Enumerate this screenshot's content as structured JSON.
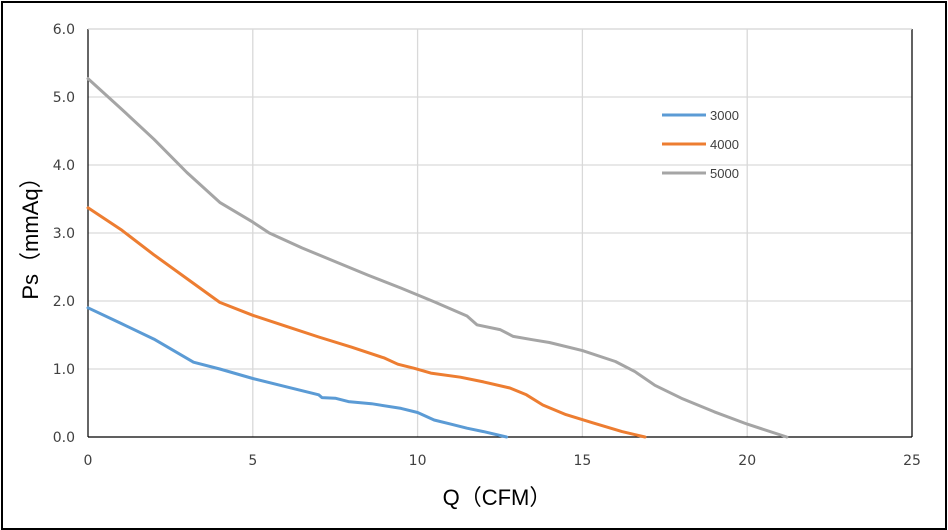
{
  "chart_data": {
    "type": "line",
    "title": "",
    "xlabel": "Q（CFM）",
    "ylabel": "Ps（mmAq）",
    "xlim": [
      0,
      25
    ],
    "ylim": [
      0,
      6
    ],
    "x_ticks": [
      "0",
      "5",
      "10",
      "15",
      "20",
      "25"
    ],
    "y_ticks": [
      "0.0",
      "1.0",
      "2.0",
      "3.0",
      "4.0",
      "5.0",
      "6.0"
    ],
    "grid": true,
    "legend_position": "top-right",
    "series": [
      {
        "name": "3000",
        "color": "#5B9BD5",
        "points": [
          [
            0,
            1.9
          ],
          [
            1,
            1.67
          ],
          [
            2,
            1.44
          ],
          [
            3.2,
            1.1
          ],
          [
            4,
            1.0
          ],
          [
            5,
            0.86
          ],
          [
            6,
            0.74
          ],
          [
            7,
            0.62
          ],
          [
            7.1,
            0.58
          ],
          [
            7.5,
            0.57
          ],
          [
            7.9,
            0.52
          ],
          [
            8.6,
            0.49
          ],
          [
            9.5,
            0.42
          ],
          [
            10.0,
            0.36
          ],
          [
            10.5,
            0.25
          ],
          [
            11.0,
            0.19
          ],
          [
            11.5,
            0.13
          ],
          [
            12.0,
            0.08
          ],
          [
            12.7,
            0.0
          ]
        ]
      },
      {
        "name": "4000",
        "color": "#ED7D31",
        "points": [
          [
            0,
            3.37
          ],
          [
            1,
            3.05
          ],
          [
            2,
            2.68
          ],
          [
            3,
            2.33
          ],
          [
            4,
            1.98
          ],
          [
            5,
            1.79
          ],
          [
            6,
            1.63
          ],
          [
            7,
            1.47
          ],
          [
            8,
            1.32
          ],
          [
            9,
            1.16
          ],
          [
            9.4,
            1.07
          ],
          [
            9.9,
            1.01
          ],
          [
            10.4,
            0.94
          ],
          [
            11.3,
            0.88
          ],
          [
            12.0,
            0.81
          ],
          [
            12.8,
            0.72
          ],
          [
            13.3,
            0.62
          ],
          [
            13.8,
            0.47
          ],
          [
            14.5,
            0.33
          ],
          [
            15.3,
            0.21
          ],
          [
            16.2,
            0.08
          ],
          [
            16.9,
            0.0
          ]
        ]
      },
      {
        "name": "5000",
        "color": "#A5A5A5",
        "points": [
          [
            0,
            5.27
          ],
          [
            1,
            4.83
          ],
          [
            2,
            4.38
          ],
          [
            3,
            3.89
          ],
          [
            4,
            3.45
          ],
          [
            5,
            3.16
          ],
          [
            5.5,
            3.0
          ],
          [
            6.5,
            2.78
          ],
          [
            7.5,
            2.58
          ],
          [
            8.5,
            2.38
          ],
          [
            9.5,
            2.19
          ],
          [
            10.5,
            1.99
          ],
          [
            11.5,
            1.78
          ],
          [
            11.8,
            1.65
          ],
          [
            12.5,
            1.58
          ],
          [
            12.9,
            1.48
          ],
          [
            13.5,
            1.43
          ],
          [
            14.0,
            1.39
          ],
          [
            15.0,
            1.27
          ],
          [
            16.0,
            1.11
          ],
          [
            16.6,
            0.96
          ],
          [
            17.2,
            0.76
          ],
          [
            18.0,
            0.57
          ],
          [
            19.0,
            0.37
          ],
          [
            20.0,
            0.19
          ],
          [
            21.2,
            0.0
          ]
        ]
      }
    ]
  }
}
